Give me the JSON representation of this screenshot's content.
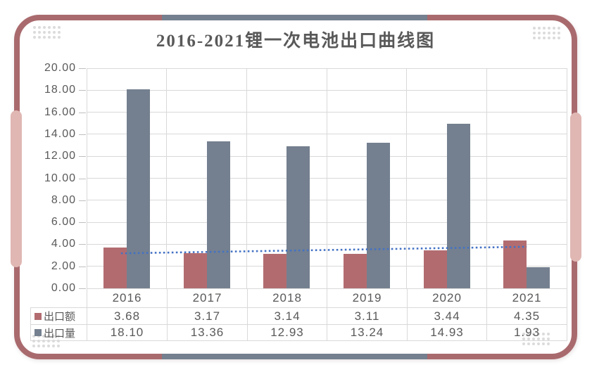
{
  "card": {
    "title": "2016-2021锂一次电池出口曲线图",
    "decor": {
      "border_maroon": "#A96A6E",
      "border_blue": "#74808F",
      "accent_pink": "#E0B7B3",
      "corner_dots": "#DBDBDB"
    }
  },
  "chart_data": {
    "type": "bar",
    "title": "2016-2021锂一次电池出口曲线图",
    "categories": [
      "2016",
      "2017",
      "2018",
      "2019",
      "2020",
      "2021"
    ],
    "series": [
      {
        "name": "出口额",
        "slug": "export-value",
        "color": "#B26C70",
        "values": [
          3.68,
          3.17,
          3.14,
          3.11,
          3.44,
          4.35
        ]
      },
      {
        "name": "出口量",
        "slug": "export-volume",
        "color": "#74808F",
        "values": [
          18.1,
          13.36,
          12.93,
          13.24,
          14.93,
          1.93
        ]
      }
    ],
    "trendline": {
      "on_series": "出口额",
      "style": "dotted",
      "color": "#4472C4"
    },
    "ylim": [
      0,
      20
    ],
    "yticks": [
      "0.00",
      "2.00",
      "4.00",
      "6.00",
      "8.00",
      "10.00",
      "12.00",
      "14.00",
      "16.00",
      "18.00",
      "20.00"
    ],
    "grid": true,
    "gridline_color": "#D9D9D9",
    "axis_text_color": "#595959",
    "legend_position": "data-table-left",
    "data_table": true
  },
  "table": {
    "columns": [
      "2016",
      "2017",
      "2018",
      "2019",
      "2020",
      "2021"
    ],
    "rows": [
      {
        "label": "出口额",
        "slug": "export-value",
        "marker_color": "#B26C70",
        "values": [
          "3.68",
          "3.17",
          "3.14",
          "3.11",
          "3.44",
          "4.35"
        ]
      },
      {
        "label": "出口量",
        "slug": "export-volume",
        "marker_color": "#74808F",
        "values": [
          "18.10",
          "13.36",
          "12.93",
          "13.24",
          "14.93",
          "1.93"
        ]
      }
    ]
  }
}
